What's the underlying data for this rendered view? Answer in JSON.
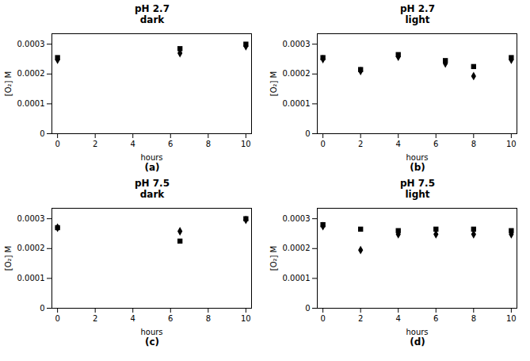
{
  "chart_data": [
    {
      "type": "scatter",
      "title": "pH 2.7\ndark",
      "x_label": "hours",
      "y_label": "[O₂] M",
      "annotation": "(a)",
      "x": [
        0,
        6.5,
        10
      ],
      "series": [
        {
          "marker": "square",
          "color": "black",
          "values": [
            0.000255,
            0.000285,
            0.0003
          ]
        },
        {
          "marker": "diamond",
          "color": "black",
          "values": [
            0.000248,
            0.00027,
            0.000293
          ]
        }
      ],
      "xlim": [
        -0.3,
        10.3
      ],
      "xticks": [
        0,
        2,
        4,
        6,
        8,
        10
      ],
      "ylim": [
        0,
        0.000335
      ],
      "yticks": [
        0,
        0.0001,
        0.0002,
        0.0003
      ],
      "grid": false
    },
    {
      "type": "scatter",
      "title": "pH 2.7\nlight",
      "x_label": "hours",
      "y_label": "[O₂] M",
      "annotation": "(b)",
      "x": [
        0,
        2,
        4,
        6.5,
        8,
        10
      ],
      "series": [
        {
          "marker": "square",
          "color": "black",
          "values": [
            0.000255,
            0.000215,
            0.000265,
            0.000245,
            0.000225,
            0.000255
          ]
        },
        {
          "marker": "diamond",
          "color": "black",
          "values": [
            0.00025,
            0.00021,
            0.000258,
            0.000235,
            0.000193,
            0.000248
          ]
        }
      ],
      "xlim": [
        -0.3,
        10.3
      ],
      "xticks": [
        0,
        2,
        4,
        6,
        8,
        10
      ],
      "ylim": [
        0,
        0.000335
      ],
      "yticks": [
        0,
        0.0001,
        0.0002,
        0.0003
      ],
      "grid": false
    },
    {
      "type": "scatter",
      "title": "pH 7.5\ndark",
      "x_label": "hours",
      "y_label": "[O₂] M",
      "annotation": "(c)",
      "x": [
        0,
        6.5,
        10
      ],
      "series": [
        {
          "marker": "square",
          "color": "black",
          "values": [
            0.00027,
            0.000225,
            0.0003
          ]
        },
        {
          "marker": "diamond",
          "color": "black",
          "values": [
            0.00027,
            0.000258,
            0.000296
          ]
        }
      ],
      "xlim": [
        -0.3,
        10.3
      ],
      "xticks": [
        0,
        2,
        4,
        6,
        8,
        10
      ],
      "ylim": [
        0,
        0.000335
      ],
      "yticks": [
        0,
        0.0001,
        0.0002,
        0.0003
      ],
      "grid": false
    },
    {
      "type": "scatter",
      "title": "pH 7.5\nlight",
      "x_label": "hours",
      "y_label": "[O₂] M",
      "annotation": "(d)",
      "x": [
        0,
        2,
        4,
        6,
        8,
        10
      ],
      "series": [
        {
          "marker": "square",
          "color": "black",
          "values": [
            0.00028,
            0.000265,
            0.00026,
            0.000265,
            0.000265,
            0.00026
          ]
        },
        {
          "marker": "diamond",
          "color": "black",
          "values": [
            0.000275,
            0.000195,
            0.000248,
            0.000248,
            0.000248,
            0.000248
          ]
        }
      ],
      "xlim": [
        -0.3,
        10.3
      ],
      "xticks": [
        0,
        2,
        4,
        6,
        8,
        10
      ],
      "ylim": [
        0,
        0.000335
      ],
      "yticks": [
        0,
        0.0001,
        0.0002,
        0.0003
      ],
      "grid": false
    }
  ]
}
